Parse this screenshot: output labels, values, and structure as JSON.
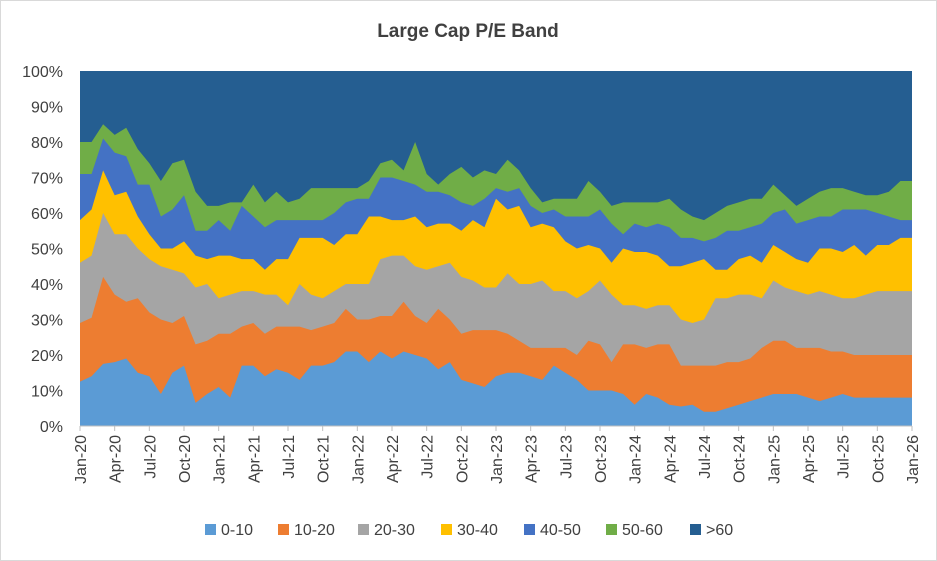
{
  "chart_data": {
    "type": "area",
    "stacked": "percent",
    "title": "Large Cap P/E Band",
    "y_ticks": [
      "0%",
      "10%",
      "20%",
      "30%",
      "40%",
      "50%",
      "60%",
      "70%",
      "80%",
      "90%",
      "100%"
    ],
    "ylim": [
      0,
      100
    ],
    "x_ticks": [
      "Jan-20",
      "Apr-20",
      "Jul-20",
      "Oct-20",
      "Jan-21",
      "Apr-21",
      "Jul-21",
      "Oct-21",
      "Jan-22",
      "Apr-22",
      "Jul-22",
      "Oct-22",
      "Jan-23",
      "Apr-23",
      "Jul-23",
      "Oct-23",
      "Jan-24",
      "Apr-24",
      "Jul-24",
      "Oct-24",
      "Jan-25",
      "Apr-25",
      "Jul-25",
      "Oct-25",
      "Jan-26"
    ],
    "grid": false,
    "legend_position": "bottom",
    "x_start": "Jan-20",
    "x_frequency": "monthly",
    "series": [
      {
        "name": "0-10",
        "color": "#5b9bd5",
        "values": [
          12.5,
          14,
          17.5,
          18,
          19,
          15,
          14,
          9,
          15,
          17,
          6.5,
          9,
          11,
          8,
          17,
          17,
          14,
          16,
          15,
          13,
          17,
          17,
          18,
          21,
          21,
          18,
          21,
          19,
          21,
          20,
          19,
          16,
          18,
          13,
          12,
          11,
          14,
          15,
          15,
          14,
          13,
          17,
          15,
          13,
          10,
          10,
          10,
          9,
          6,
          9,
          8,
          6,
          5.5,
          6,
          4,
          4,
          5,
          6,
          7,
          8,
          9,
          9,
          9,
          8,
          7,
          8,
          9,
          8,
          8,
          8,
          8,
          8,
          8
        ]
      },
      {
        "name": "10-20",
        "color": "#ed7d31",
        "values": [
          29,
          30.5,
          42,
          37,
          35,
          36,
          32,
          30,
          29,
          31,
          23,
          24,
          26,
          26,
          28,
          29,
          26,
          28,
          28,
          28,
          27,
          28,
          29,
          33,
          30,
          30,
          31,
          31,
          35,
          31,
          29,
          33,
          30,
          26,
          27,
          27,
          27,
          26,
          24,
          22,
          22,
          22,
          22,
          20,
          24,
          23,
          18,
          23,
          23,
          22,
          23,
          23,
          17,
          17,
          17,
          17,
          18,
          18,
          19,
          22,
          24,
          24,
          22,
          22,
          22,
          21,
          21,
          20,
          20,
          20,
          20,
          20,
          20
        ]
      },
      {
        "name": "20-30",
        "color": "#a5a5a5",
        "values": [
          46,
          48,
          60,
          54,
          54,
          50,
          47,
          45,
          44,
          43,
          39,
          40,
          36,
          37,
          38,
          38,
          37,
          37,
          34,
          40,
          37,
          36,
          38,
          40,
          40,
          40,
          47,
          48,
          48,
          45,
          44,
          45,
          46,
          42,
          41,
          39,
          39,
          43,
          40,
          40,
          41,
          38,
          38,
          36,
          38,
          41,
          37,
          34,
          34,
          33,
          34,
          34,
          30,
          29,
          30,
          36,
          36,
          37,
          37,
          36,
          41,
          39,
          38,
          37,
          38,
          37,
          36,
          36,
          37,
          38,
          38,
          38,
          38
        ]
      },
      {
        "name": "30-40",
        "color": "#ffc000",
        "values": [
          58,
          61,
          72,
          65,
          66,
          59,
          54,
          50,
          50,
          52,
          48,
          47,
          48,
          48,
          47,
          47,
          44,
          47,
          47,
          53,
          53,
          53,
          51,
          54,
          54,
          59,
          59,
          58,
          58,
          59,
          56,
          57,
          57,
          55,
          58,
          56,
          64,
          61,
          62,
          56,
          57,
          56,
          52,
          50,
          51,
          50,
          46,
          50,
          49,
          49,
          48,
          45,
          45,
          46,
          47,
          44,
          44,
          47,
          48,
          46,
          51,
          49,
          47,
          46,
          50,
          50,
          49,
          51,
          48,
          51,
          51,
          53,
          53
        ]
      },
      {
        "name": "40-50",
        "color": "#4472c4",
        "values": [
          71,
          71,
          81,
          77,
          76,
          68,
          68,
          59,
          61,
          65,
          55,
          55,
          58,
          55,
          62,
          59,
          56,
          58,
          58,
          58,
          58,
          58,
          60,
          63,
          64,
          64,
          70,
          70,
          69,
          68,
          66,
          66,
          65,
          63,
          62,
          64,
          67,
          66,
          67,
          62,
          60,
          61,
          59,
          59,
          59,
          61,
          57,
          54,
          57,
          56,
          57,
          56,
          53,
          53,
          52,
          53,
          55,
          55,
          56,
          57,
          60,
          61,
          57,
          58,
          59,
          59,
          61,
          61,
          61,
          60,
          59,
          58,
          58
        ]
      },
      {
        "name": "50-60",
        "color": "#70ad47",
        "values": [
          80,
          80,
          85,
          82,
          84,
          78,
          74,
          69,
          74,
          75,
          66,
          62,
          62,
          63,
          63,
          68,
          63,
          66,
          63,
          64,
          67,
          67,
          67,
          67,
          67,
          69,
          74,
          75,
          72,
          80,
          71,
          68,
          71,
          73,
          70,
          72,
          71,
          75,
          72,
          67,
          63,
          64,
          64,
          64,
          69,
          66,
          62,
          63,
          63,
          63,
          63,
          64,
          61,
          59,
          58,
          60,
          62,
          63,
          64,
          64,
          68,
          65,
          62,
          64,
          66,
          67,
          67,
          66,
          65,
          65,
          66,
          69,
          69
        ]
      },
      {
        "name": ">60",
        "color": "#255e91",
        "values": [
          100,
          100,
          100,
          100,
          100,
          100,
          100,
          100,
          100,
          100,
          100,
          100,
          100,
          100,
          100,
          100,
          100,
          100,
          100,
          100,
          100,
          100,
          100,
          100,
          100,
          100,
          100,
          100,
          100,
          100,
          100,
          100,
          100,
          100,
          100,
          100,
          100,
          100,
          100,
          100,
          100,
          100,
          100,
          100,
          100,
          100,
          100,
          100,
          100,
          100,
          100,
          100,
          100,
          100,
          100,
          100,
          100,
          100,
          100,
          100,
          100,
          100,
          100,
          100,
          100,
          100,
          100,
          100,
          100,
          100,
          100,
          100,
          100
        ]
      }
    ],
    "values_are_cumulative": true
  }
}
